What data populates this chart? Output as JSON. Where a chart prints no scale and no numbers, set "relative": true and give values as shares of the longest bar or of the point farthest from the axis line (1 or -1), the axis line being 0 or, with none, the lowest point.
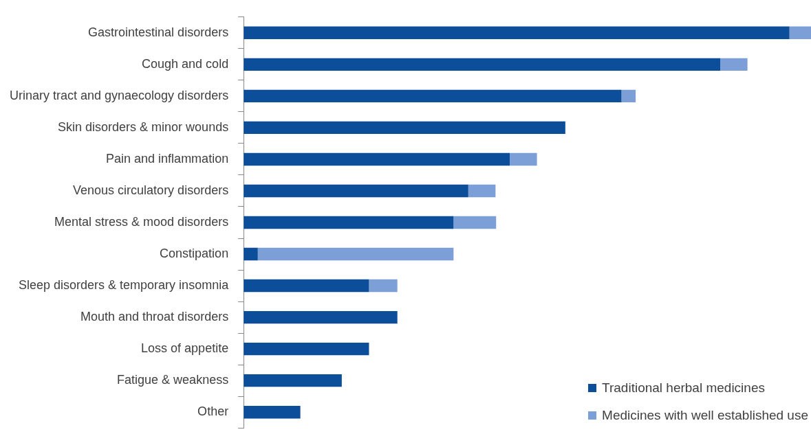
{
  "chart_data": {
    "type": "bar",
    "orientation": "horizontal",
    "stacked": true,
    "relative": true,
    "legend": "bottom right",
    "categories": [
      "Gastrointestinal disorders",
      "Cough and cold",
      "Urinary tract and gynaecology disorders",
      "Skin disorders & minor wounds",
      "Pain and inflammation",
      "Venous circulatory disorders",
      "Mental stress & mood disorders",
      "Constipation",
      "Sleep disorders & temporary insomnia",
      "Mouth and throat disorders",
      "Loss of appetite",
      "Fatigue & weakness",
      "Other"
    ],
    "series": [
      {
        "name": "Traditional herbal medicines",
        "color": "#0d4e9a",
        "values": [
          0.962,
          0.84,
          0.666,
          0.567,
          0.469,
          0.396,
          0.37,
          0.025,
          0.221,
          0.271,
          0.221,
          0.173,
          0.1
        ]
      },
      {
        "name": "Medicines with well established use",
        "color": "#7d9fd8",
        "values": [
          0.038,
          0.048,
          0.025,
          0,
          0.048,
          0.048,
          0.075,
          0.345,
          0.05,
          0,
          0,
          0,
          0
        ]
      }
    ]
  }
}
